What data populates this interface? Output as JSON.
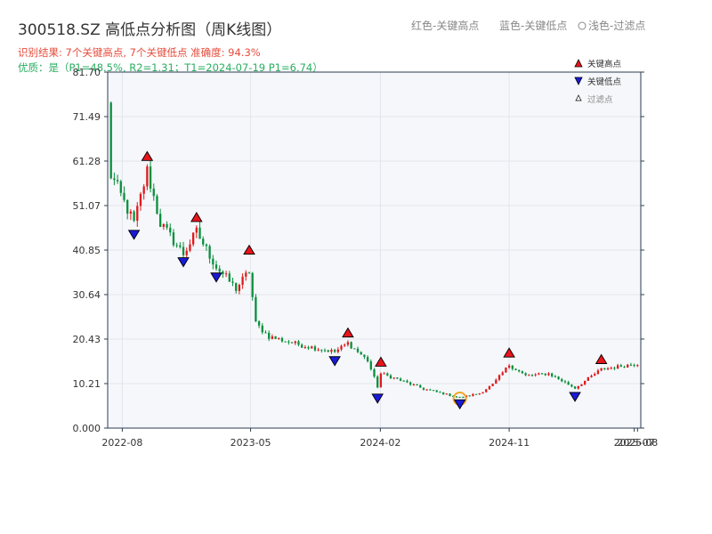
{
  "title": "300518.SZ 高低点分析图（周K线图）",
  "subtitle_result": "识别结果: 7个关键高点, 7个关键低点  准确度: 94.3%",
  "subtitle_quality": "优质：是（P1=48.5%, R2=1.31；T1=2024-07-19 P1=6.74）",
  "top_legend": {
    "red": "红色-关键高点",
    "blue": "蓝色-关键低点",
    "light": "浅色-过滤点"
  },
  "colors": {
    "up": "#e0191b",
    "down": "#0a8f3c",
    "high_marker": "#e8141c",
    "low_marker": "#1a1ad6",
    "filtered_ring": "#f5a623",
    "plot_bg": "#f5f7fa",
    "grid": "#e2e6ec",
    "axis": "#2c3e50"
  },
  "chart_data": {
    "type": "candlestick",
    "title": "300518.SZ 高低点分析图（周K线图）",
    "ylim": [
      0.0,
      81.7
    ],
    "yticks": [
      "0.000",
      "10.21",
      "20.43",
      "30.64",
      "40.85",
      "51.07",
      "61.28",
      "71.49",
      "81.70"
    ],
    "xlim": [
      "2022-07-01",
      "2025-08-08"
    ],
    "xticks": [
      {
        "date": "2022-08-01",
        "label": "2022-08"
      },
      {
        "date": "2023-05-01",
        "label": "2023-05"
      },
      {
        "date": "2024-02-01",
        "label": "2024-02"
      },
      {
        "date": "2024-11-01",
        "label": "2024-11"
      },
      {
        "date": "2025-07-25",
        "label": "2025-07"
      },
      {
        "date": "2025-08-01",
        "label": "2025-08"
      }
    ],
    "grid": true,
    "legend_placement": "top-right",
    "legend": [
      {
        "label": "关键高点",
        "marker": "triangle-up"
      },
      {
        "label": "关键低点",
        "marker": "triangle-down"
      },
      {
        "label": "过滤点",
        "marker": "triangle-up-small"
      }
    ],
    "key_highs": [
      {
        "date": "2022-09-23",
        "value": 61.0
      },
      {
        "date": "2023-01-06",
        "value": 47.0
      },
      {
        "date": "2023-04-28",
        "value": 39.5
      },
      {
        "date": "2023-11-24",
        "value": 20.5
      },
      {
        "date": "2024-02-02",
        "value": 13.8
      },
      {
        "date": "2024-11-01",
        "value": 15.9
      },
      {
        "date": "2025-05-16",
        "value": 14.4
      }
    ],
    "key_lows": [
      {
        "date": "2022-08-26",
        "value": 45.8
      },
      {
        "date": "2022-12-09",
        "value": 39.5
      },
      {
        "date": "2023-02-17",
        "value": 36.0
      },
      {
        "date": "2023-10-27",
        "value": 16.8
      },
      {
        "date": "2024-01-26",
        "value": 8.2
      },
      {
        "date": "2024-07-19",
        "value": 6.9
      },
      {
        "date": "2025-03-21",
        "value": 8.6
      }
    ],
    "filtered_points": [
      {
        "date": "2024-07-19",
        "value": 6.74
      }
    ],
    "anchors": [
      [
        "2022-07-01",
        74.0
      ],
      [
        "2022-07-08",
        58.0
      ],
      [
        "2022-07-22",
        55.0
      ],
      [
        "2022-08-26",
        47.0
      ],
      [
        "2022-09-23",
        59.0
      ],
      [
        "2022-10-21",
        47.0
      ],
      [
        "2022-12-09",
        40.0
      ],
      [
        "2023-01-06",
        45.0
      ],
      [
        "2023-02-17",
        37.0
      ],
      [
        "2023-03-31",
        32.0
      ],
      [
        "2023-04-28",
        36.0
      ],
      [
        "2023-05-12",
        24.0
      ],
      [
        "2023-06-09",
        21.0
      ],
      [
        "2023-08-18",
        19.0
      ],
      [
        "2023-10-27",
        17.5
      ],
      [
        "2023-11-24",
        19.5
      ],
      [
        "2024-01-05",
        15.5
      ],
      [
        "2024-01-26",
        9.5
      ],
      [
        "2024-02-02",
        12.5
      ],
      [
        "2024-03-01",
        11.5
      ],
      [
        "2024-05-03",
        9.0
      ],
      [
        "2024-07-19",
        7.0
      ],
      [
        "2024-08-30",
        8.0
      ],
      [
        "2024-09-27",
        10.0
      ],
      [
        "2024-11-01",
        14.5
      ],
      [
        "2024-12-06",
        12.0
      ],
      [
        "2025-01-24",
        12.5
      ],
      [
        "2025-03-21",
        9.2
      ],
      [
        "2025-05-16",
        13.5
      ],
      [
        "2025-08-01",
        14.8
      ]
    ]
  }
}
